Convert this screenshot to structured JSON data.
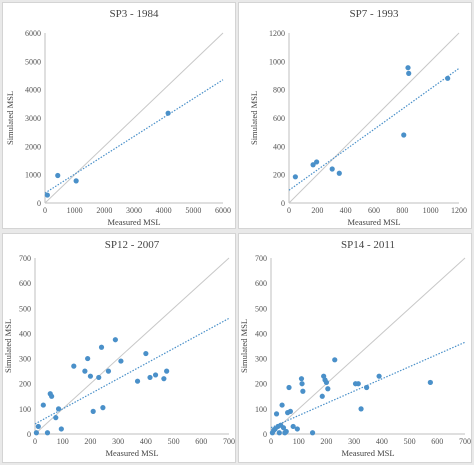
{
  "chart_data": [
    {
      "type": "scatter",
      "title": "SP3 - 1984",
      "xlabel": "Measured MSL",
      "ylabel": "Simulated MSL",
      "xlim": [
        0,
        6000
      ],
      "ylim": [
        0,
        6000
      ],
      "xticks": [
        0,
        1000,
        2000,
        3000,
        4000,
        5000,
        6000
      ],
      "yticks": [
        0,
        1000,
        2000,
        3000,
        4000,
        5000,
        6000
      ],
      "points": [
        {
          "x": 80,
          "y": 280
        },
        {
          "x": 430,
          "y": 970
        },
        {
          "x": 1050,
          "y": 780
        },
        {
          "x": 4150,
          "y": 3170
        }
      ],
      "trendline": {
        "x": [
          0,
          6000
        ],
        "y": [
          350,
          4350
        ]
      },
      "reference_line": "1:1",
      "colors": {
        "points": "#4a90c9",
        "trend": "#4a90c9",
        "reference": "#c8c8c8"
      }
    },
    {
      "type": "scatter",
      "title": "SP7 - 1993",
      "xlabel": "Measured MSL",
      "ylabel": "Simulated MSL",
      "xlim": [
        0,
        1200
      ],
      "ylim": [
        0,
        1200
      ],
      "xticks": [
        0,
        200,
        400,
        600,
        800,
        1000,
        1200
      ],
      "yticks": [
        0,
        200,
        400,
        600,
        800,
        1000,
        1200
      ],
      "points": [
        {
          "x": 45,
          "y": 185
        },
        {
          "x": 170,
          "y": 270
        },
        {
          "x": 195,
          "y": 290
        },
        {
          "x": 305,
          "y": 240
        },
        {
          "x": 355,
          "y": 210
        },
        {
          "x": 810,
          "y": 480
        },
        {
          "x": 840,
          "y": 955
        },
        {
          "x": 845,
          "y": 915
        },
        {
          "x": 1120,
          "y": 880
        }
      ],
      "trendline": {
        "x": [
          0,
          1200
        ],
        "y": [
          90,
          950
        ]
      },
      "reference_line": "1:1",
      "colors": {
        "points": "#4a90c9",
        "trend": "#4a90c9",
        "reference": "#c8c8c8"
      }
    },
    {
      "type": "scatter",
      "title": "SP12 - 2007",
      "xlabel": "Measured MSL",
      "ylabel": "Simulated MSL",
      "xlim": [
        0,
        700
      ],
      "ylim": [
        0,
        700
      ],
      "xticks": [
        0,
        100,
        200,
        300,
        400,
        500,
        600,
        700
      ],
      "yticks": [
        0,
        100,
        200,
        300,
        400,
        500,
        600,
        700
      ],
      "points": [
        {
          "x": 5,
          "y": 5
        },
        {
          "x": 12,
          "y": 30
        },
        {
          "x": 30,
          "y": 115
        },
        {
          "x": 45,
          "y": 5
        },
        {
          "x": 55,
          "y": 160
        },
        {
          "x": 60,
          "y": 150
        },
        {
          "x": 75,
          "y": 65
        },
        {
          "x": 85,
          "y": 100
        },
        {
          "x": 95,
          "y": 20
        },
        {
          "x": 140,
          "y": 270
        },
        {
          "x": 180,
          "y": 250
        },
        {
          "x": 190,
          "y": 300
        },
        {
          "x": 200,
          "y": 230
        },
        {
          "x": 210,
          "y": 90
        },
        {
          "x": 230,
          "y": 225
        },
        {
          "x": 240,
          "y": 345
        },
        {
          "x": 245,
          "y": 105
        },
        {
          "x": 265,
          "y": 250
        },
        {
          "x": 290,
          "y": 375
        },
        {
          "x": 310,
          "y": 290
        },
        {
          "x": 370,
          "y": 210
        },
        {
          "x": 400,
          "y": 320
        },
        {
          "x": 415,
          "y": 225
        },
        {
          "x": 435,
          "y": 235
        },
        {
          "x": 465,
          "y": 220
        },
        {
          "x": 475,
          "y": 250
        }
      ],
      "trendline": {
        "x": [
          0,
          700
        ],
        "y": [
          40,
          460
        ]
      },
      "reference_line": "1:1",
      "colors": {
        "points": "#4a90c9",
        "trend": "#4a90c9",
        "reference": "#c8c8c8"
      }
    },
    {
      "type": "scatter",
      "title": "SP14 - 2011",
      "xlabel": "Measured MSL",
      "ylabel": "Simulated MSL",
      "xlim": [
        0,
        700
      ],
      "ylim": [
        0,
        700
      ],
      "xticks": [
        0,
        100,
        200,
        300,
        400,
        500,
        600,
        700
      ],
      "yticks": [
        0,
        100,
        200,
        300,
        400,
        500,
        600,
        700
      ],
      "points": [
        {
          "x": 5,
          "y": 5
        },
        {
          "x": 10,
          "y": 15
        },
        {
          "x": 15,
          "y": 20
        },
        {
          "x": 20,
          "y": 80
        },
        {
          "x": 25,
          "y": 30
        },
        {
          "x": 30,
          "y": 5
        },
        {
          "x": 35,
          "y": 35
        },
        {
          "x": 40,
          "y": 115
        },
        {
          "x": 45,
          "y": 25
        },
        {
          "x": 50,
          "y": 5
        },
        {
          "x": 55,
          "y": 10
        },
        {
          "x": 60,
          "y": 85
        },
        {
          "x": 65,
          "y": 185
        },
        {
          "x": 70,
          "y": 90
        },
        {
          "x": 80,
          "y": 30
        },
        {
          "x": 95,
          "y": 20
        },
        {
          "x": 110,
          "y": 220
        },
        {
          "x": 112,
          "y": 200
        },
        {
          "x": 115,
          "y": 170
        },
        {
          "x": 150,
          "y": 5
        },
        {
          "x": 185,
          "y": 150
        },
        {
          "x": 190,
          "y": 230
        },
        {
          "x": 195,
          "y": 215
        },
        {
          "x": 200,
          "y": 205
        },
        {
          "x": 205,
          "y": 180
        },
        {
          "x": 230,
          "y": 295
        },
        {
          "x": 305,
          "y": 200
        },
        {
          "x": 315,
          "y": 200
        },
        {
          "x": 325,
          "y": 100
        },
        {
          "x": 345,
          "y": 185
        },
        {
          "x": 390,
          "y": 230
        },
        {
          "x": 575,
          "y": 205
        }
      ],
      "trendline": {
        "x": [
          0,
          700
        ],
        "y": [
          25,
          365
        ]
      },
      "reference_line": "1:1",
      "colors": {
        "points": "#4a90c9",
        "trend": "#4a90c9",
        "reference": "#c8c8c8"
      }
    }
  ]
}
